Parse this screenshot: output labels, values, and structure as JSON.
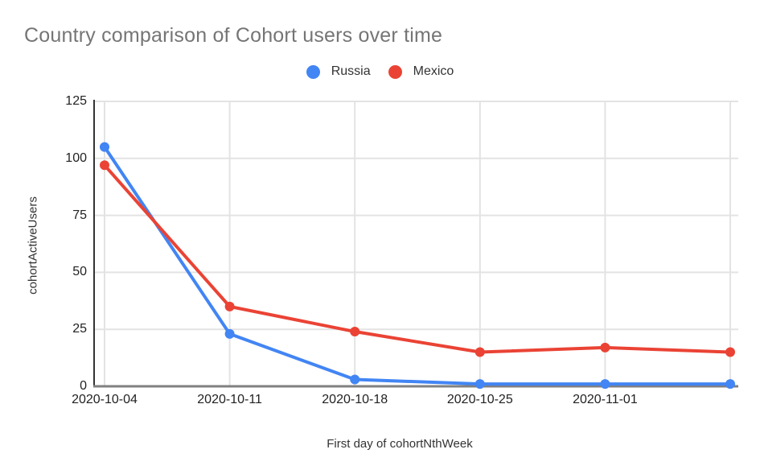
{
  "chart_data": {
    "type": "line",
    "title": "Country comparison of Cohort users over time",
    "xlabel": "First day of cohortNthWeek",
    "ylabel": "cohortActiveUsers",
    "x": [
      "2020-10-04",
      "2020-10-11",
      "2020-10-18",
      "2020-10-25",
      "2020-11-01",
      ""
    ],
    "series": [
      {
        "name": "Russia",
        "color": "#4285F4",
        "values": [
          105,
          23,
          3,
          1,
          1,
          1
        ]
      },
      {
        "name": "Mexico",
        "color": "#EA4335",
        "values": [
          97,
          35,
          24,
          15,
          17,
          15
        ]
      }
    ],
    "yticks": [
      0,
      25,
      50,
      75,
      100,
      125
    ],
    "ylim": [
      0,
      125
    ],
    "grid": true,
    "legend_position": "top",
    "marker": "circle"
  },
  "colors": {
    "title_text": "#757575",
    "tick_text": "#222222",
    "axis_title_text": "#333333",
    "gridline": "#e3e3e3",
    "y_axis_line": "#333333",
    "x_baseline": "#808080",
    "background": "#ffffff"
  }
}
